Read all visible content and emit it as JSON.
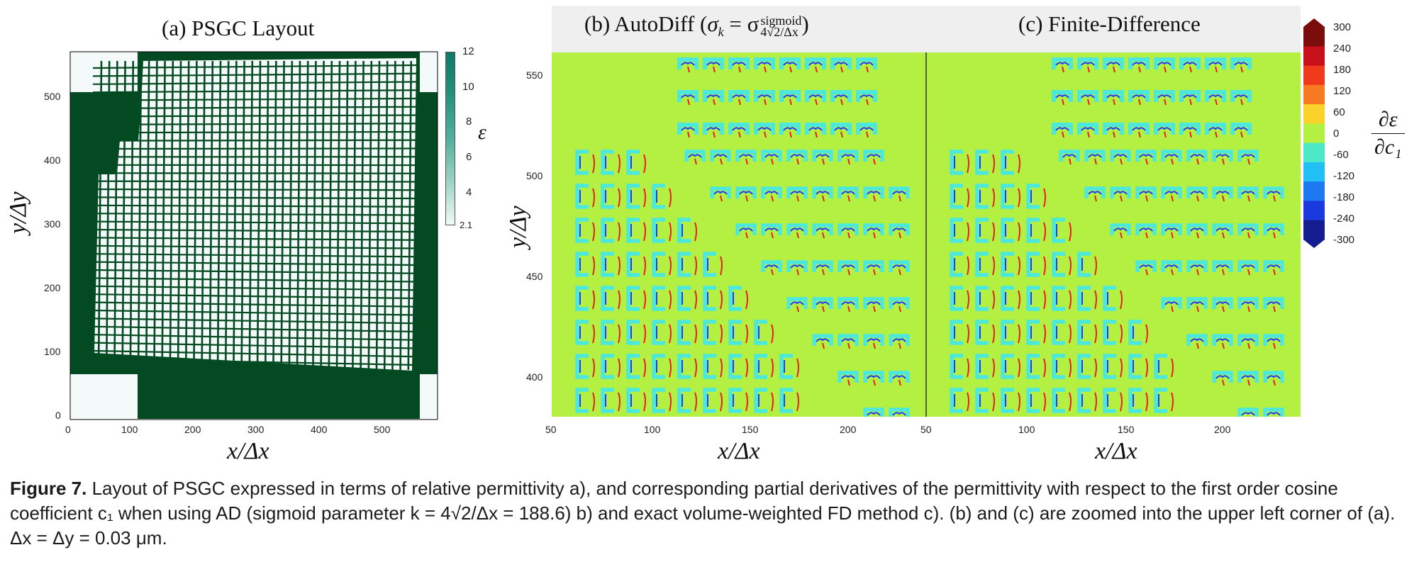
{
  "panel_a": {
    "title": "(a) PSGC Layout",
    "x_label": "x/Δx",
    "y_label": "y/Δy",
    "x_ticks": [
      "0",
      "100",
      "200",
      "300",
      "400",
      "500"
    ],
    "y_ticks": [
      "0",
      "100",
      "200",
      "300",
      "400",
      "500"
    ],
    "colorbar_label": "ε",
    "colorbar_ticks": [
      "12",
      "10",
      "8",
      "6",
      "4",
      "2.1"
    ],
    "colors": {
      "background": "#034a22",
      "grating": "#f4fafa"
    }
  },
  "panel_b": {
    "title_prefix": "(b) AutoDiff (",
    "title_sigma": "σ",
    "title_sub_k": "k",
    "title_eq": " = σ",
    "title_sup": "sigmoid",
    "title_sub": "4√2/Δx",
    "title_suffix": ")"
  },
  "panel_c": {
    "title": "(c) Finite-Difference"
  },
  "zoom": {
    "x_label": "x/Δx",
    "y_label": "y/Δy",
    "x_ticks_b": [
      "50",
      "100",
      "150",
      "200"
    ],
    "x_ticks_c": [
      "50",
      "100",
      "150",
      "200"
    ],
    "y_ticks": [
      "550",
      "500",
      "450",
      "400"
    ],
    "colors": {
      "field": "#b4f042",
      "cyan": "#4ce8dc",
      "blue": "#1e3cff",
      "red": "#e82020"
    }
  },
  "colorbar_d": {
    "ticks": [
      "300",
      "240",
      "180",
      "120",
      "60",
      "0",
      "-60",
      "-120",
      "-180",
      "-240",
      "-300"
    ],
    "label_num": "∂ε",
    "label_den": "∂c₁",
    "colors": [
      "#7a0c0c",
      "#c8101a",
      "#f03a1c",
      "#f77a22",
      "#fbd22a",
      "#b4f042",
      "#4ce8c8",
      "#22bff5",
      "#1e78f0",
      "#1a3ae0",
      "#141c90"
    ]
  },
  "caption": {
    "figure_label": "Figure 7.",
    "text": " Layout of PSGC expressed in terms of relative permittivity a), and corresponding partial derivatives of the permittivity with respect to the first order cosine coefficient c₁ when using AD (sigmoid parameter k = 4√2/Δx = 188.6) b) and exact volume-weighted FD method c). (b) and (c) are zoomed into the upper left corner of (a). Δx = Δy = 0.03 μm."
  }
}
